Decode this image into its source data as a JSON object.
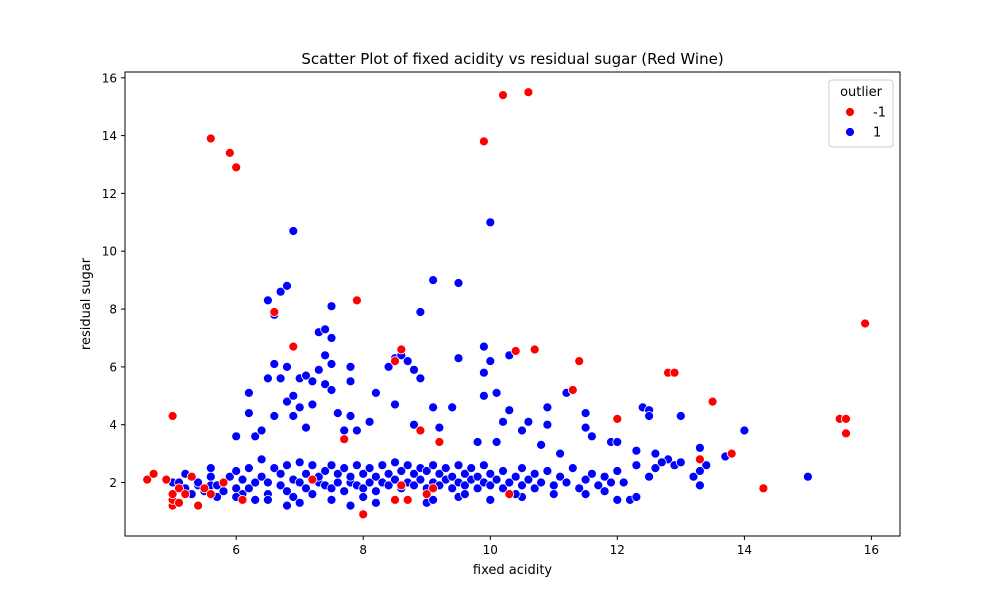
{
  "chart_data": {
    "type": "scatter",
    "title": "Scatter Plot of fixed acidity vs residual sugar (Red Wine)",
    "xlabel": "fixed acidity",
    "ylabel": "residual sugar",
    "xlim": [
      4.25,
      16.45
    ],
    "ylim": [
      0.15,
      16.2
    ],
    "xticks": [
      6,
      8,
      10,
      12,
      14,
      16
    ],
    "yticks": [
      2,
      4,
      6,
      8,
      10,
      12,
      14,
      16
    ],
    "grid": false,
    "legend": {
      "title": "outlier",
      "placement": "top-right"
    },
    "series": [
      {
        "name": "-1",
        "color": "#ff0000",
        "points": [
          [
            4.6,
            2.1
          ],
          [
            4.7,
            2.3
          ],
          [
            4.9,
            2.1
          ],
          [
            5.0,
            1.2
          ],
          [
            5.0,
            1.4
          ],
          [
            5.0,
            1.6
          ],
          [
            5.0,
            4.3
          ],
          [
            5.1,
            1.3
          ],
          [
            5.1,
            1.8
          ],
          [
            5.2,
            1.6
          ],
          [
            5.3,
            2.2
          ],
          [
            5.4,
            1.2
          ],
          [
            5.5,
            1.8
          ],
          [
            5.6,
            1.6
          ],
          [
            5.6,
            13.9
          ],
          [
            5.8,
            2.0
          ],
          [
            5.9,
            13.4
          ],
          [
            6.0,
            12.9
          ],
          [
            6.1,
            1.4
          ],
          [
            6.6,
            7.9
          ],
          [
            6.9,
            6.7
          ],
          [
            7.2,
            2.1
          ],
          [
            7.7,
            3.5
          ],
          [
            7.9,
            8.3
          ],
          [
            8.0,
            0.9
          ],
          [
            8.5,
            6.2
          ],
          [
            8.5,
            1.4
          ],
          [
            8.6,
            6.6
          ],
          [
            8.6,
            1.9
          ],
          [
            8.7,
            1.4
          ],
          [
            8.9,
            3.8
          ],
          [
            9.0,
            1.6
          ],
          [
            9.1,
            1.8
          ],
          [
            9.2,
            3.4
          ],
          [
            9.9,
            13.8
          ],
          [
            10.2,
            15.4
          ],
          [
            10.3,
            1.6
          ],
          [
            10.4,
            6.55
          ],
          [
            10.6,
            15.5
          ],
          [
            10.7,
            6.6
          ],
          [
            11.3,
            5.2
          ],
          [
            11.4,
            6.2
          ],
          [
            12.0,
            4.2
          ],
          [
            12.8,
            5.8
          ],
          [
            12.9,
            5.8
          ],
          [
            13.3,
            2.8
          ],
          [
            13.5,
            4.8
          ],
          [
            13.8,
            3.0
          ],
          [
            14.3,
            1.8
          ],
          [
            15.5,
            4.2
          ],
          [
            15.6,
            4.2
          ],
          [
            15.6,
            3.7
          ],
          [
            15.9,
            7.5
          ]
        ]
      },
      {
        "name": "1",
        "color": "#0000ff",
        "points": [
          [
            5.2,
            2.3
          ],
          [
            5.4,
            1.9
          ],
          [
            5.6,
            2.5
          ],
          [
            5.7,
            1.5
          ],
          [
            6.0,
            3.6
          ],
          [
            6.2,
            5.1
          ],
          [
            6.2,
            4.4
          ],
          [
            6.3,
            3.6
          ],
          [
            6.4,
            3.8
          ],
          [
            6.5,
            8.3
          ],
          [
            6.5,
            5.6
          ],
          [
            6.6,
            7.8
          ],
          [
            6.6,
            6.1
          ],
          [
            6.6,
            4.3
          ],
          [
            6.7,
            8.6
          ],
          [
            6.8,
            8.8
          ],
          [
            6.7,
            5.6
          ],
          [
            6.8,
            6.0
          ],
          [
            6.8,
            4.8
          ],
          [
            6.9,
            10.7
          ],
          [
            6.9,
            5.0
          ],
          [
            6.9,
            4.3
          ],
          [
            7.0,
            5.6
          ],
          [
            7.0,
            4.6
          ],
          [
            7.1,
            5.7
          ],
          [
            7.1,
            3.9
          ],
          [
            7.2,
            4.7
          ],
          [
            7.2,
            5.5
          ],
          [
            7.3,
            7.2
          ],
          [
            7.3,
            5.9
          ],
          [
            7.4,
            7.3
          ],
          [
            7.4,
            6.4
          ],
          [
            7.4,
            5.4
          ],
          [
            7.5,
            8.1
          ],
          [
            7.5,
            7.0
          ],
          [
            7.5,
            6.1
          ],
          [
            7.5,
            5.2
          ],
          [
            7.6,
            4.4
          ],
          [
            7.7,
            3.8
          ],
          [
            7.8,
            6.0
          ],
          [
            7.8,
            5.5
          ],
          [
            7.8,
            4.3
          ],
          [
            7.9,
            3.8
          ],
          [
            8.1,
            4.1
          ],
          [
            8.2,
            5.1
          ],
          [
            8.4,
            6.0
          ],
          [
            8.5,
            6.3
          ],
          [
            8.5,
            4.7
          ],
          [
            8.6,
            6.4
          ],
          [
            8.7,
            6.2
          ],
          [
            8.8,
            5.9
          ],
          [
            8.9,
            7.9
          ],
          [
            8.9,
            5.6
          ],
          [
            8.8,
            4.0
          ],
          [
            9.1,
            9.0
          ],
          [
            9.1,
            4.6
          ],
          [
            9.2,
            3.9
          ],
          [
            9.4,
            4.6
          ],
          [
            9.5,
            8.9
          ],
          [
            9.5,
            6.3
          ],
          [
            9.8,
            3.4
          ],
          [
            9.9,
            6.7
          ],
          [
            9.9,
            5.8
          ],
          [
            9.9,
            5.0
          ],
          [
            10.0,
            11.0
          ],
          [
            10.0,
            6.2
          ],
          [
            10.1,
            5.1
          ],
          [
            10.1,
            3.4
          ],
          [
            10.2,
            4.1
          ],
          [
            10.3,
            6.4
          ],
          [
            10.3,
            4.5
          ],
          [
            10.5,
            3.8
          ],
          [
            10.6,
            4.1
          ],
          [
            10.8,
            3.3
          ],
          [
            10.9,
            4.6
          ],
          [
            10.9,
            4.0
          ],
          [
            11.1,
            3.0
          ],
          [
            11.2,
            5.1
          ],
          [
            11.5,
            4.4
          ],
          [
            11.5,
            3.9
          ],
          [
            11.6,
            3.6
          ],
          [
            11.9,
            3.4
          ],
          [
            12.0,
            3.4
          ],
          [
            12.3,
            3.1
          ],
          [
            12.4,
            4.6
          ],
          [
            12.5,
            4.5
          ],
          [
            12.5,
            4.3
          ],
          [
            12.6,
            3.0
          ],
          [
            12.8,
            2.8
          ],
          [
            13.0,
            4.3
          ],
          [
            13.2,
            2.2
          ],
          [
            13.3,
            3.2
          ],
          [
            13.3,
            1.9
          ],
          [
            13.4,
            2.6
          ],
          [
            13.7,
            2.9
          ],
          [
            14.0,
            3.8
          ],
          [
            15.0,
            2.2
          ],
          [
            4.6,
            2.1
          ],
          [
            5.0,
            2.0
          ],
          [
            5.1,
            2.0
          ],
          [
            5.2,
            1.8
          ],
          [
            5.3,
            1.6
          ],
          [
            5.4,
            2.0
          ],
          [
            5.5,
            1.7
          ],
          [
            5.6,
            1.9
          ],
          [
            5.6,
            2.2
          ],
          [
            5.7,
            1.9
          ],
          [
            5.8,
            1.7
          ],
          [
            5.9,
            2.2
          ],
          [
            6.0,
            1.8
          ],
          [
            6.0,
            2.4
          ],
          [
            6.1,
            1.6
          ],
          [
            6.1,
            2.1
          ],
          [
            6.2,
            1.8
          ],
          [
            6.2,
            2.5
          ],
          [
            6.3,
            1.4
          ],
          [
            6.3,
            2.0
          ],
          [
            6.4,
            2.2
          ],
          [
            6.4,
            2.8
          ],
          [
            6.5,
            1.6
          ],
          [
            6.5,
            2.0
          ],
          [
            6.6,
            2.5
          ],
          [
            6.7,
            1.9
          ],
          [
            6.7,
            2.3
          ],
          [
            6.8,
            1.7
          ],
          [
            6.8,
            2.6
          ],
          [
            6.9,
            2.1
          ],
          [
            6.9,
            1.5
          ],
          [
            7.0,
            2.0
          ],
          [
            7.0,
            2.7
          ],
          [
            7.1,
            1.8
          ],
          [
            7.1,
            2.3
          ],
          [
            7.2,
            1.6
          ],
          [
            7.2,
            2.6
          ],
          [
            7.3,
            2.0
          ],
          [
            7.3,
            2.2
          ],
          [
            7.4,
            1.9
          ],
          [
            7.4,
            2.4
          ],
          [
            7.5,
            1.8
          ],
          [
            7.5,
            2.6
          ],
          [
            7.6,
            2.0
          ],
          [
            7.6,
            2.3
          ],
          [
            7.7,
            1.7
          ],
          [
            7.7,
            2.5
          ],
          [
            7.8,
            2.0
          ],
          [
            7.8,
            2.2
          ],
          [
            7.9,
            1.9
          ],
          [
            7.9,
            2.6
          ],
          [
            8.0,
            1.8
          ],
          [
            8.0,
            2.3
          ],
          [
            8.1,
            2.0
          ],
          [
            8.1,
            2.5
          ],
          [
            8.2,
            1.7
          ],
          [
            8.2,
            2.2
          ],
          [
            8.3,
            2.0
          ],
          [
            8.3,
            2.6
          ],
          [
            8.4,
            1.9
          ],
          [
            8.4,
            2.3
          ],
          [
            8.5,
            2.1
          ],
          [
            8.5,
            2.7
          ],
          [
            8.6,
            1.8
          ],
          [
            8.6,
            2.4
          ],
          [
            8.7,
            2.0
          ],
          [
            8.7,
            2.6
          ],
          [
            8.8,
            1.9
          ],
          [
            8.8,
            2.3
          ],
          [
            8.9,
            2.1
          ],
          [
            8.9,
            2.5
          ],
          [
            9.0,
            1.8
          ],
          [
            9.0,
            2.4
          ],
          [
            9.1,
            2.0
          ],
          [
            9.1,
            2.6
          ],
          [
            9.2,
            1.9
          ],
          [
            9.2,
            2.3
          ],
          [
            9.3,
            2.1
          ],
          [
            9.3,
            2.5
          ],
          [
            9.4,
            1.8
          ],
          [
            9.4,
            2.2
          ],
          [
            9.5,
            2.0
          ],
          [
            9.5,
            2.6
          ],
          [
            9.6,
            1.9
          ],
          [
            9.6,
            2.3
          ],
          [
            9.7,
            2.1
          ],
          [
            9.7,
            2.5
          ],
          [
            9.8,
            1.8
          ],
          [
            9.8,
            2.2
          ],
          [
            9.9,
            2.0
          ],
          [
            9.9,
            2.6
          ],
          [
            10.0,
            1.9
          ],
          [
            10.0,
            2.3
          ],
          [
            10.1,
            2.1
          ],
          [
            10.2,
            1.8
          ],
          [
            10.2,
            2.4
          ],
          [
            10.3,
            2.0
          ],
          [
            10.4,
            2.2
          ],
          [
            10.5,
            1.9
          ],
          [
            10.5,
            2.5
          ],
          [
            10.6,
            2.1
          ],
          [
            10.7,
            1.8
          ],
          [
            10.7,
            2.3
          ],
          [
            10.8,
            2.0
          ],
          [
            10.9,
            2.4
          ],
          [
            11.0,
            1.9
          ],
          [
            11.1,
            2.2
          ],
          [
            11.2,
            2.0
          ],
          [
            11.3,
            2.5
          ],
          [
            11.4,
            1.8
          ],
          [
            11.5,
            2.1
          ],
          [
            11.6,
            2.3
          ],
          [
            11.7,
            1.9
          ],
          [
            11.8,
            2.2
          ],
          [
            11.9,
            2.0
          ],
          [
            12.0,
            2.4
          ],
          [
            12.1,
            2.0
          ],
          [
            12.2,
            1.4
          ],
          [
            12.3,
            2.6
          ],
          [
            12.5,
            2.2
          ],
          [
            12.6,
            2.5
          ],
          [
            12.7,
            2.7
          ],
          [
            12.9,
            2.6
          ],
          [
            13.0,
            2.7
          ],
          [
            13.3,
            2.4
          ],
          [
            6.0,
            1.5
          ],
          [
            6.5,
            1.4
          ],
          [
            7.0,
            1.3
          ],
          [
            7.5,
            1.4
          ],
          [
            8.0,
            1.5
          ],
          [
            8.5,
            1.4
          ],
          [
            9.0,
            1.3
          ],
          [
            9.5,
            1.5
          ],
          [
            10.0,
            1.4
          ],
          [
            10.5,
            1.5
          ],
          [
            11.0,
            1.6
          ],
          [
            11.5,
            1.6
          ],
          [
            12.0,
            1.4
          ],
          [
            6.8,
            1.2
          ],
          [
            7.8,
            1.2
          ],
          [
            8.2,
            1.3
          ],
          [
            9.1,
            1.4
          ],
          [
            9.6,
            1.6
          ],
          [
            10.4,
            1.6
          ],
          [
            11.8,
            1.7
          ],
          [
            12.3,
            1.5
          ]
        ]
      }
    ]
  }
}
